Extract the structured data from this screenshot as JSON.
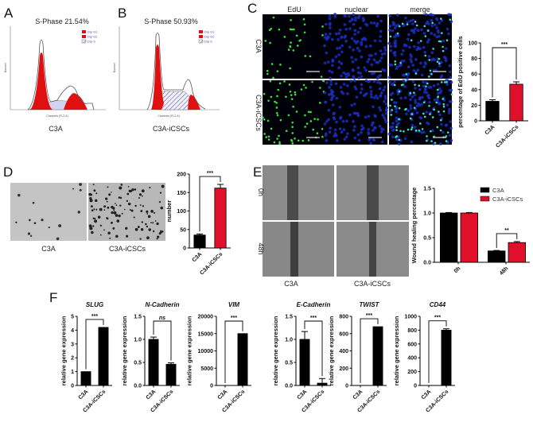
{
  "panels": {
    "A": "A",
    "B": "B",
    "C": "C",
    "D": "D",
    "E": "E",
    "F": "F"
  },
  "flow": [
    {
      "title": "S-Phase 21.54%",
      "caption": "C3A",
      "legend": [
        "Dip G1",
        "Dip G2",
        "Dip S"
      ],
      "xlabel": "Channels (FL2-A)",
      "ylabel": "Number"
    },
    {
      "title": "S-Phase 50.93%",
      "caption": "C3A-iCSCs",
      "legend": [
        "Dip G1",
        "Dip G2",
        "Dip S"
      ],
      "xlabel": "Channels (FL2-A)",
      "ylabel": "Number"
    }
  ],
  "edu": {
    "columns": [
      "EdU",
      "nuclear",
      "merge"
    ],
    "rows": [
      "C3A",
      "C3A-iCSCs"
    ]
  },
  "invasion": {
    "captions": [
      "C3A",
      "C3A-iCSCs"
    ]
  },
  "wound": {
    "rows": [
      "0h",
      "48h"
    ],
    "captions": [
      "C3A",
      "C3A-iCSCs"
    ]
  },
  "colors": {
    "c3a": "#000000",
    "icscs": "#e0102a"
  },
  "chart_data": [
    {
      "id": "edu",
      "type": "bar",
      "categories": [
        "C3A",
        "C3A-iCSCs"
      ],
      "values": [
        25,
        47
      ],
      "errors": [
        2,
        3
      ],
      "colors": [
        "#000000",
        "#e0102a"
      ],
      "ylabel": "percentage of EdU positive cells",
      "ylim": [
        0,
        100
      ],
      "yticks": [
        0,
        20,
        40,
        60,
        80,
        100
      ],
      "significance": "***"
    },
    {
      "id": "invasion",
      "type": "bar",
      "categories": [
        "C3A",
        "C3A-iCSCs"
      ],
      "values": [
        35,
        162
      ],
      "errors": [
        3,
        10
      ],
      "colors": [
        "#000000",
        "#e0102a"
      ],
      "ylabel": "number",
      "ylim": [
        0,
        200
      ],
      "yticks": [
        0,
        50,
        100,
        150,
        200
      ],
      "significance": "***"
    },
    {
      "id": "wound",
      "type": "bar",
      "categories": [
        "0h",
        "48h"
      ],
      "series": [
        {
          "name": "C3A",
          "values": [
            1.0,
            0.23
          ],
          "errors": [
            0.01,
            0.01
          ],
          "color": "#000000"
        },
        {
          "name": "C3A-iCSCs",
          "values": [
            1.0,
            0.4
          ],
          "errors": [
            0.01,
            0.02
          ],
          "color": "#e0102a"
        }
      ],
      "ylabel": "Wound healing percentage",
      "ylim": [
        0,
        1.5
      ],
      "yticks": [
        "0.0",
        "0.5",
        "1.0",
        "1.5"
      ],
      "significance": "**",
      "legend": "top-right"
    },
    {
      "id": "slug",
      "type": "bar",
      "title": "SLUG",
      "categories": [
        "C3A",
        "C3A-iCSCs"
      ],
      "values": [
        1,
        4.2
      ],
      "errors": [
        0,
        0
      ],
      "colors": [
        "#000000",
        "#000000"
      ],
      "ylabel": "relative gene expression",
      "ylim": [
        0,
        5
      ],
      "yticks": [
        0,
        1,
        2,
        3,
        4,
        5
      ],
      "significance": "***"
    },
    {
      "id": "ncad",
      "type": "bar",
      "title": "N-Cadherin",
      "categories": [
        "C3A",
        "C3A-iCSCs"
      ],
      "values": [
        1.0,
        0.46
      ],
      "errors": [
        0.05,
        0.03
      ],
      "colors": [
        "#000000",
        "#000000"
      ],
      "ylabel": "relative gene expression",
      "ylim": [
        0,
        1.5
      ],
      "yticks": [
        "0.0",
        "0.5",
        "1.0",
        "1.5"
      ],
      "significance": "ns"
    },
    {
      "id": "vim",
      "type": "bar",
      "title": "VIM",
      "categories": [
        "C3A",
        "C3A-iCSCs"
      ],
      "values": [
        1,
        15000
      ],
      "errors": [
        0,
        0
      ],
      "colors": [
        "#000000",
        "#000000"
      ],
      "ylabel": "relative gene expression",
      "ylim": [
        0,
        20000
      ],
      "yticks": [
        0,
        5000,
        10000,
        15000,
        20000
      ],
      "significance": "***"
    },
    {
      "id": "ecad",
      "type": "bar",
      "title": "E-Cadherin",
      "categories": [
        "C3A",
        "C3A-iCSCs"
      ],
      "values": [
        1.0,
        0.05
      ],
      "errors": [
        0.17,
        0.1
      ],
      "colors": [
        "#000000",
        "#000000"
      ],
      "ylabel": "relative gene expression",
      "ylim": [
        0,
        1.5
      ],
      "yticks": [
        "0.0",
        "0.5",
        "1.0",
        "1.5"
      ],
      "significance": "***"
    },
    {
      "id": "twist",
      "type": "bar",
      "title": "TWIST",
      "categories": [
        "C3A",
        "C3A-iCSCs"
      ],
      "values": [
        1,
        680
      ],
      "errors": [
        0,
        0
      ],
      "colors": [
        "#000000",
        "#000000"
      ],
      "ylabel": "relative gene expression",
      "ylim": [
        0,
        800
      ],
      "yticks": [
        0,
        200,
        400,
        600,
        800
      ],
      "significance": "***"
    },
    {
      "id": "cd44",
      "type": "bar",
      "title": "CD44",
      "categories": [
        "C3A",
        "C3A-iCSCs"
      ],
      "values": [
        1,
        800
      ],
      "errors": [
        0,
        20
      ],
      "colors": [
        "#000000",
        "#000000"
      ],
      "ylabel": "relative gene expression",
      "ylim": [
        0,
        1000
      ],
      "yticks": [
        0,
        200,
        400,
        600,
        800,
        1000
      ],
      "significance": "***"
    }
  ]
}
